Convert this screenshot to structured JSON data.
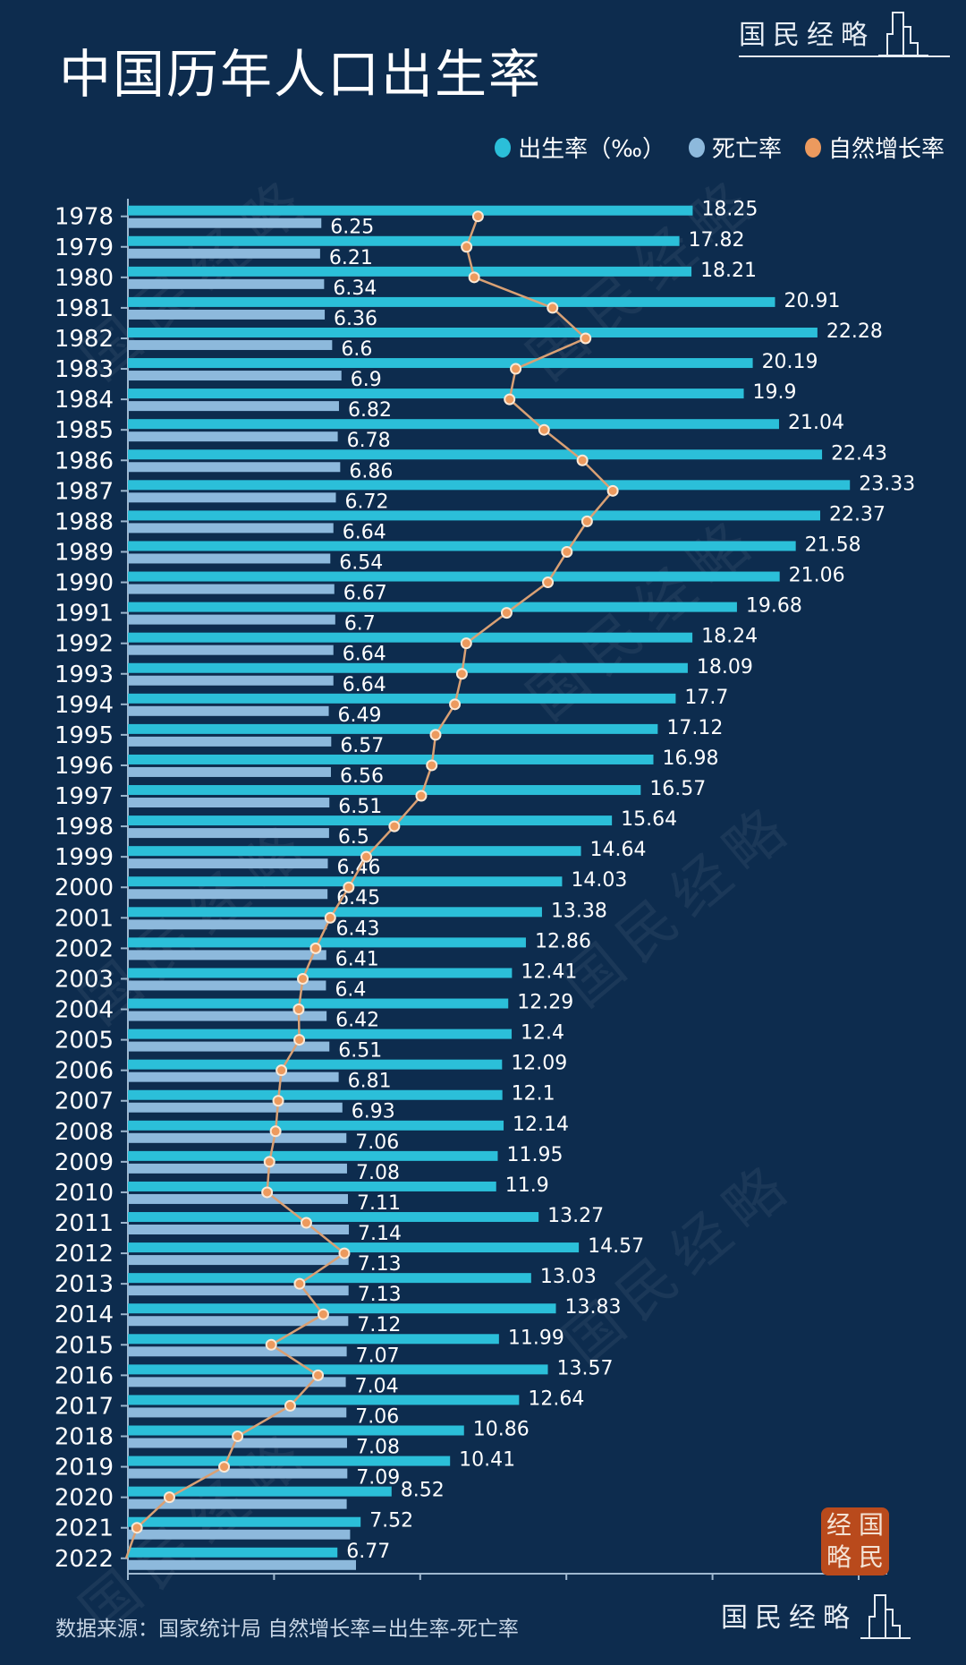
{
  "title": "中国历年人口出生率",
  "logo_text": "国民经略",
  "stamp_chars": [
    "经",
    "国",
    "略",
    "民"
  ],
  "footer": "数据来源：国家统计局 自然增长率=出生率-死亡率",
  "colors": {
    "background": "#0d2c4e",
    "birth": "#2bbfd9",
    "death": "#8db9dc",
    "growth": "#ec9a5e"
  },
  "chart_data": {
    "type": "bar",
    "title": "中国历年人口出生率",
    "orientation": "horizontal",
    "legend": {
      "placement": "top-right",
      "entries": [
        "出生率（‰）",
        "死亡率",
        "自然增长率"
      ]
    },
    "categories": [
      "1978",
      "1979",
      "1980",
      "1981",
      "1982",
      "1983",
      "1984",
      "1985",
      "1986",
      "1987",
      "1988",
      "1989",
      "1990",
      "1991",
      "1992",
      "1993",
      "1994",
      "1995",
      "1996",
      "1997",
      "1998",
      "1999",
      "2000",
      "2001",
      "2002",
      "2003",
      "2004",
      "2005",
      "2006",
      "2007",
      "2008",
      "2009",
      "2010",
      "2011",
      "2012",
      "2013",
      "2014",
      "2015",
      "2016",
      "2017",
      "2018",
      "2019",
      "2020",
      "2021",
      "2022"
    ],
    "series": [
      {
        "name": "出生率（‰）",
        "type": "bar",
        "values": [
          18.25,
          17.82,
          18.21,
          20.91,
          22.28,
          20.19,
          19.9,
          21.04,
          22.43,
          23.33,
          22.37,
          21.58,
          21.06,
          19.68,
          18.24,
          18.09,
          17.7,
          17.12,
          16.98,
          16.57,
          15.64,
          14.64,
          14.03,
          13.38,
          12.86,
          12.41,
          12.29,
          12.4,
          12.09,
          12.1,
          12.14,
          11.95,
          11.9,
          13.27,
          14.57,
          13.03,
          13.83,
          11.99,
          13.57,
          12.64,
          10.86,
          10.41,
          8.52,
          7.52,
          6.77
        ]
      },
      {
        "name": "死亡率",
        "type": "bar",
        "values": [
          6.25,
          6.21,
          6.34,
          6.36,
          6.6,
          6.9,
          6.82,
          6.78,
          6.86,
          6.72,
          6.64,
          6.54,
          6.67,
          6.7,
          6.64,
          6.64,
          6.49,
          6.57,
          6.56,
          6.51,
          6.5,
          6.46,
          6.45,
          6.43,
          6.41,
          6.4,
          6.42,
          6.51,
          6.81,
          6.93,
          7.06,
          7.08,
          7.11,
          7.14,
          7.13,
          7.13,
          7.12,
          7.07,
          7.04,
          7.06,
          7.08,
          7.09,
          7.07,
          7.18,
          7.37
        ],
        "labels_shown": 42
      },
      {
        "name": "自然增长率",
        "type": "line",
        "values": [
          12,
          11.61,
          11.87,
          14.55,
          15.68,
          13.29,
          13.08,
          14.26,
          15.57,
          16.61,
          15.73,
          15.04,
          14.39,
          12.98,
          11.6,
          11.45,
          11.21,
          10.55,
          10.42,
          10.06,
          9.14,
          8.18,
          7.58,
          6.95,
          6.45,
          6.01,
          5.87,
          5.89,
          5.28,
          5.17,
          5.08,
          4.87,
          4.79,
          6.13,
          7.43,
          5.9,
          6.71,
          4.93,
          6.53,
          5.58,
          3.78,
          3.32,
          1.45,
          0.34,
          -0.6
        ]
      }
    ],
    "xlabel": "",
    "ylabel": "",
    "xlim": [
      0,
      26
    ],
    "grid": false
  }
}
